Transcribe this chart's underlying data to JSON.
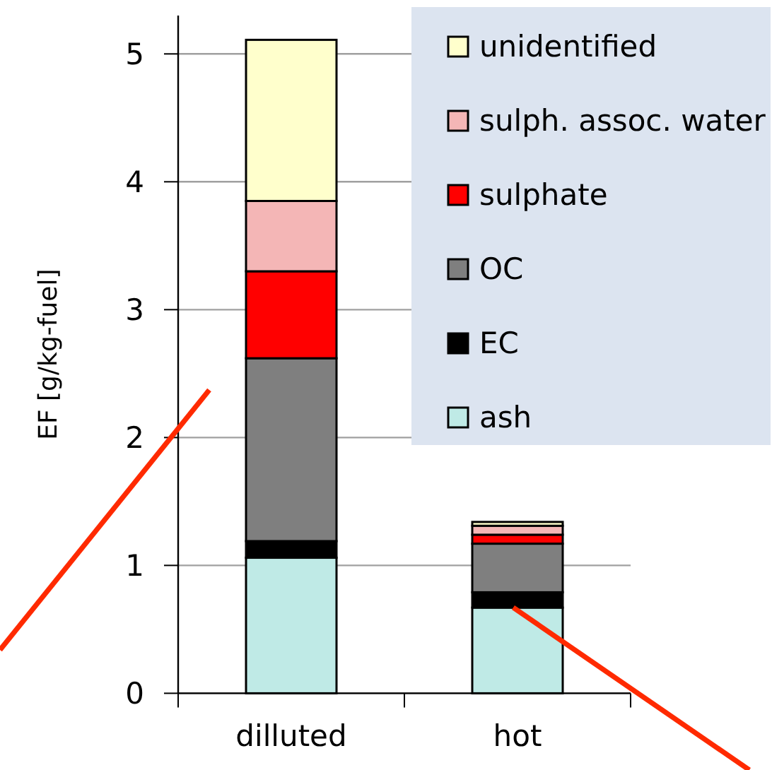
{
  "chart_data": {
    "type": "bar",
    "stacked": true,
    "ylabel": "EF [g/kg-fuel]",
    "categories": [
      "dilluted",
      "hot"
    ],
    "series": [
      {
        "name": "ash",
        "color": "#bfeae6",
        "values": [
          1.06,
          0.67
        ]
      },
      {
        "name": "EC",
        "color": "#000000",
        "values": [
          0.13,
          0.12
        ]
      },
      {
        "name": "OC",
        "color": "#7f7f7f",
        "values": [
          1.43,
          0.38
        ]
      },
      {
        "name": "sulphate",
        "color": "#ff0000",
        "values": [
          0.68,
          0.07
        ]
      },
      {
        "name": "sulph. assoc. water",
        "color": "#f4b6b6",
        "values": [
          0.55,
          0.07
        ]
      },
      {
        "name": "unidentified",
        "color": "#ffffcc",
        "values": [
          1.26,
          0.03
        ]
      }
    ],
    "ylim": [
      0,
      5.3
    ],
    "yticks": [
      0,
      1,
      2,
      3,
      4,
      5
    ],
    "grid": "y",
    "legend": "top right"
  }
}
